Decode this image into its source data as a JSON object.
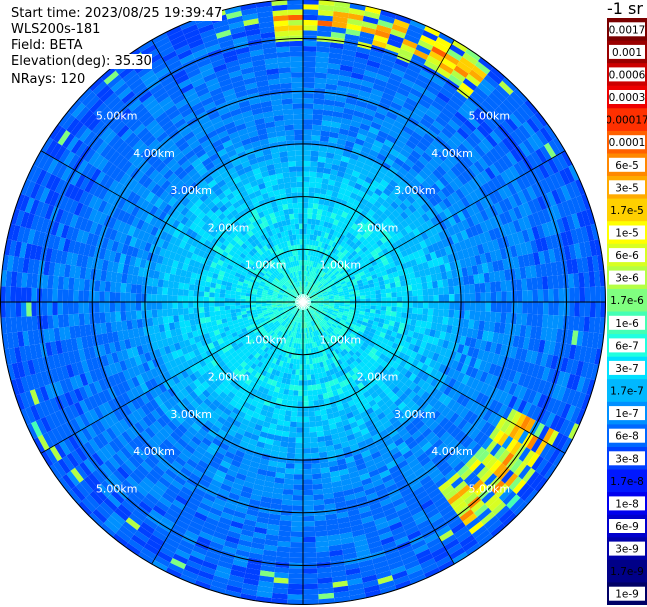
{
  "info": {
    "start_time": "Start time: 2023/08/25 19:39:47",
    "instrument": "WLS200s-181",
    "field": "Field: BETA",
    "elevation": "Elevation(deg): 35.30",
    "nrays": "NRays: 120"
  },
  "unit_label": "-1 sr",
  "chart_data": {
    "type": "heatmap",
    "projection": "polar PPI",
    "field": "BETA",
    "elevation_deg": 35.3,
    "nrays": 120,
    "range_rings_km": [
      1,
      2,
      3,
      4,
      5
    ],
    "ring_labels": [
      "1.00km",
      "2.00km",
      "3.00km",
      "4.00km",
      "5.00km"
    ],
    "max_range_km": 5.75,
    "spokes_deg": [
      0,
      30,
      60,
      90,
      120,
      150,
      180,
      210,
      240,
      270,
      300,
      330
    ],
    "colorbar": {
      "scale": "log",
      "ticks": [
        "0.0017",
        "0.001",
        "0.0006",
        "0.0003",
        "0.00017",
        "0.0001",
        "6e-5",
        "3e-5",
        "1.7e-5",
        "1e-5",
        "6e-6",
        "3e-6",
        "1.7e-6",
        "1e-6",
        "6e-7",
        "3e-7",
        "1.7e-7",
        "1e-7",
        "6e-8",
        "3e-8",
        "1.7e-8",
        "1e-8",
        "6e-9",
        "3e-9",
        "1.7e-9",
        "1e-9"
      ],
      "colors": [
        "#7a0000",
        "#9a0000",
        "#cc0000",
        "#ee0000",
        "#ff3000",
        "#ff6000",
        "#ff8800",
        "#ffaa00",
        "#ffd000",
        "#ffff00",
        "#d8ff22",
        "#b4ff44",
        "#80ff80",
        "#44ffb4",
        "#20ffe0",
        "#00e0ff",
        "#00b8ff",
        "#0090ff",
        "#0068ff",
        "#0040ff",
        "#0018ff",
        "#0000ee",
        "#0000cc",
        "#0000aa",
        "#000088",
        "#000066"
      ],
      "highlight_ticks": [
        "0.0017",
        "0.001",
        "0.0006",
        "0.0003",
        "0.0001",
        "6e-5",
        "3e-5",
        "1e-5",
        "6e-6",
        "3e-6",
        "1e-6",
        "6e-7",
        "3e-7",
        "1e-7",
        "6e-8",
        "3e-8",
        "1e-8",
        "6e-9",
        "3e-9",
        "1e-9"
      ]
    },
    "features": [
      {
        "name": "enhanced backscatter arc",
        "range_km": [
          5.0,
          5.75
        ],
        "azimuth_deg": [
          355,
          40
        ],
        "level": "1e-5 to 6e-5"
      },
      {
        "name": "enhanced backscatter arc",
        "range_km": [
          4.4,
          5.5
        ],
        "azimuth_deg": [
          118,
          145
        ],
        "level": "1e-5 to 6e-5"
      }
    ]
  }
}
